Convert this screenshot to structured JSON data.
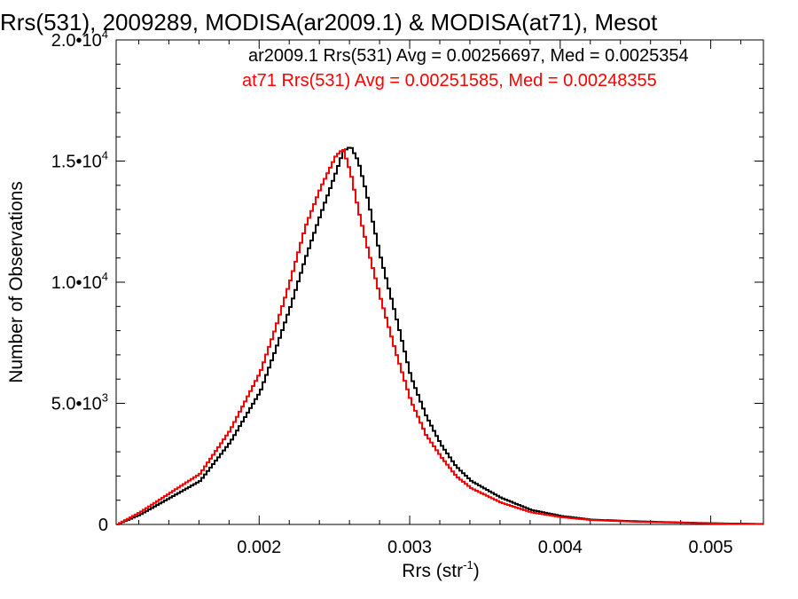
{
  "chart_data": {
    "type": "line",
    "title": "Rrs(531), 2009289, MODISA(ar2009.1) & MODISA(at71), Mesot",
    "xlabel_main": "Rrs (str",
    "xlabel_sup": "-1",
    "xlabel_close": ")",
    "ylabel": "Number of Observations",
    "xlim": [
      0.00105,
      0.00535
    ],
    "ylim": [
      0,
      20000
    ],
    "x_ticks": [
      {
        "value": 0.002,
        "label": "0.002"
      },
      {
        "value": 0.003,
        "label": "0.003"
      },
      {
        "value": 0.004,
        "label": "0.004"
      },
      {
        "value": 0.005,
        "label": "0.005"
      }
    ],
    "y_ticks": [
      {
        "value": 0,
        "base": "0",
        "exp": ""
      },
      {
        "value": 5000,
        "base": "5.0•10",
        "exp": "3"
      },
      {
        "value": 10000,
        "base": "1.0•10",
        "exp": "4"
      },
      {
        "value": 15000,
        "base": "1.5•10",
        "exp": "4"
      },
      {
        "value": 20000,
        "base": "2.0•10",
        "exp": "4"
      }
    ],
    "legend_placement": "top-right",
    "annotations": [
      {
        "text": "ar2009.1 Rrs(531) Avg = 0.00256697, Med = 0.0025354",
        "color": "#000000"
      },
      {
        "text": "at71 Rrs(531) Avg = 0.00251585, Med = 0.00248355",
        "color": "#ff0000"
      }
    ],
    "series": [
      {
        "name": "ar2009.1",
        "color": "#000000",
        "x": [
          0.00105,
          0.0012,
          0.0014,
          0.0016,
          0.0018,
          0.002,
          0.0021,
          0.0022,
          0.0023,
          0.0024,
          0.0025,
          0.00255,
          0.0026,
          0.00265,
          0.0027,
          0.0028,
          0.0029,
          0.003,
          0.0031,
          0.0032,
          0.0033,
          0.0034,
          0.0036,
          0.0038,
          0.004,
          0.0042,
          0.0045,
          0.0048,
          0.0051,
          0.00535
        ],
        "values": [
          0,
          400,
          1100,
          1800,
          3400,
          5500,
          7200,
          9000,
          11000,
          12800,
          14500,
          15400,
          15600,
          15000,
          13800,
          11000,
          8600,
          6100,
          4500,
          3300,
          2400,
          1800,
          1100,
          600,
          350,
          200,
          130,
          80,
          40,
          20
        ]
      },
      {
        "name": "at71",
        "color": "#ff0000",
        "x": [
          0.00105,
          0.0012,
          0.0014,
          0.0016,
          0.0018,
          0.002,
          0.0021,
          0.0022,
          0.0023,
          0.0024,
          0.0025,
          0.00255,
          0.0026,
          0.00265,
          0.0027,
          0.0028,
          0.0029,
          0.003,
          0.0031,
          0.0032,
          0.0033,
          0.0034,
          0.0036,
          0.0038,
          0.004,
          0.0042,
          0.0045,
          0.0048,
          0.0051,
          0.00535
        ],
        "values": [
          0,
          500,
          1300,
          2100,
          3900,
          6300,
          8100,
          10100,
          12300,
          13900,
          15200,
          15500,
          14500,
          13000,
          11700,
          9300,
          7100,
          5100,
          3700,
          2800,
          2000,
          1500,
          900,
          500,
          300,
          180,
          110,
          70,
          30,
          15
        ]
      }
    ]
  }
}
